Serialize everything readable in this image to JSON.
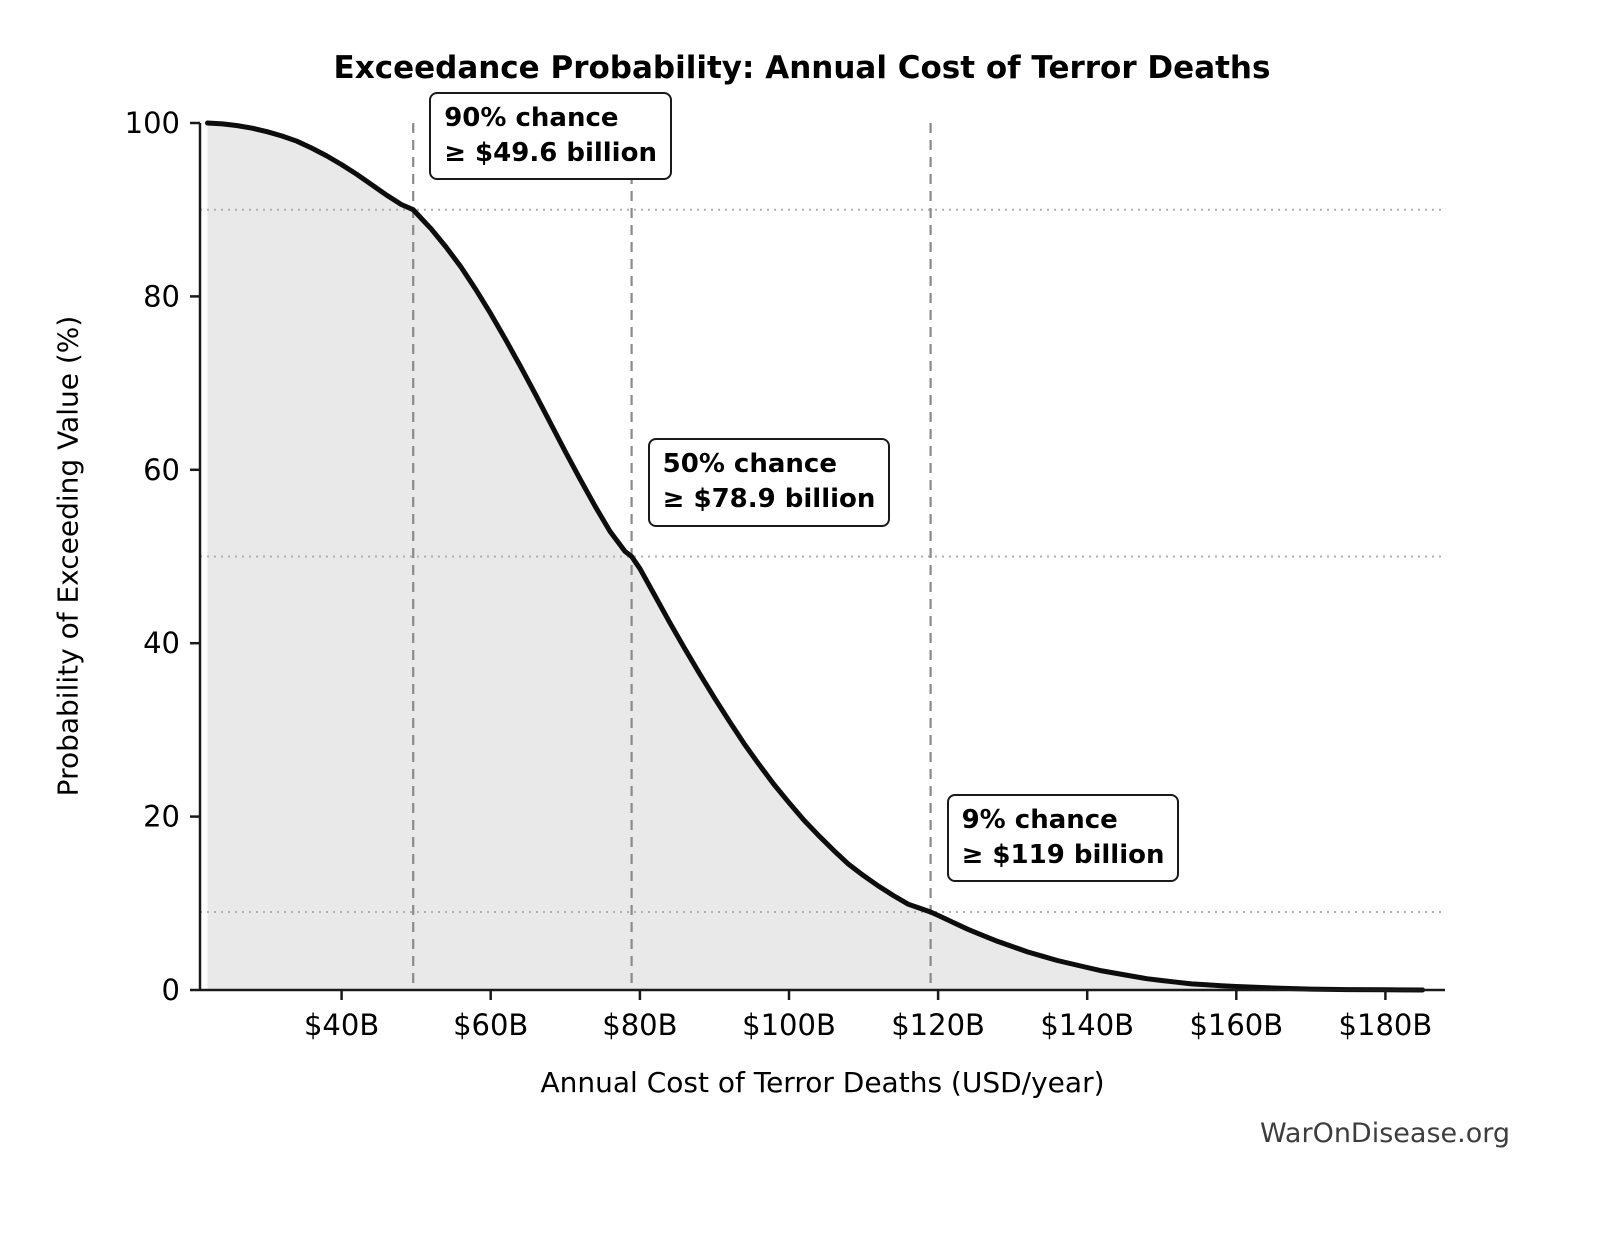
{
  "title": "Exceedance Probability: Annual Cost of Terror Deaths",
  "xlabel": "Annual Cost of Terror Deaths (USD/year)",
  "ylabel": "Probability of Exceeding Value (%)",
  "watermark": "WarOnDisease.org",
  "chart_data": {
    "type": "area",
    "title": "Exceedance Probability: Annual Cost of Terror Deaths",
    "xlabel": "Annual Cost of Terror Deaths (USD/year)",
    "ylabel": "Probability of Exceeding Value (%)",
    "xlim": [
      21,
      188
    ],
    "ylim": [
      0,
      100
    ],
    "grid": "reference-lines-only",
    "legend": "none",
    "colors": {
      "curve": "#0d0d0d",
      "fill": "#e9e9e9",
      "dashed_vline": "#8a8a8a",
      "dotted_hline": "#b0b0b0",
      "spine": "#1a1a1a"
    },
    "x_ticks": [
      {
        "value": 40,
        "label": "$40B"
      },
      {
        "value": 60,
        "label": "$60B"
      },
      {
        "value": 80,
        "label": "$80B"
      },
      {
        "value": 100,
        "label": "$100B"
      },
      {
        "value": 120,
        "label": "$120B"
      },
      {
        "value": 140,
        "label": "$140B"
      },
      {
        "value": 160,
        "label": "$160B"
      },
      {
        "value": 180,
        "label": "$180B"
      }
    ],
    "y_ticks": [
      {
        "value": 0,
        "label": "0"
      },
      {
        "value": 20,
        "label": "20"
      },
      {
        "value": 40,
        "label": "40"
      },
      {
        "value": 60,
        "label": "60"
      },
      {
        "value": 80,
        "label": "80"
      },
      {
        "value": 100,
        "label": "100"
      }
    ],
    "annotations": [
      {
        "x": 49.6,
        "y": 90,
        "line1": "90% chance",
        "line2": "≥ $49.6 billion"
      },
      {
        "x": 78.9,
        "y": 50,
        "line1": "50% chance",
        "line2": "≥ $78.9 billion"
      },
      {
        "x": 119,
        "y": 9,
        "line1": "9% chance",
        "line2": "≥ $119 billion"
      }
    ],
    "curve": [
      [
        22,
        100
      ],
      [
        24,
        99.9
      ],
      [
        26,
        99.7
      ],
      [
        28,
        99.4
      ],
      [
        30,
        99.0
      ],
      [
        32,
        98.5
      ],
      [
        34,
        97.9
      ],
      [
        36,
        97.1
      ],
      [
        38,
        96.2
      ],
      [
        40,
        95.2
      ],
      [
        42,
        94.1
      ],
      [
        44,
        92.9
      ],
      [
        46,
        91.7
      ],
      [
        48,
        90.6
      ],
      [
        49.6,
        90.0
      ],
      [
        51,
        88.7
      ],
      [
        52,
        87.8
      ],
      [
        54,
        85.7
      ],
      [
        56,
        83.4
      ],
      [
        58,
        80.8
      ],
      [
        60,
        78.0
      ],
      [
        62,
        75.0
      ],
      [
        64,
        71.9
      ],
      [
        66,
        68.7
      ],
      [
        68,
        65.4
      ],
      [
        70,
        62.1
      ],
      [
        72,
        58.9
      ],
      [
        74,
        55.8
      ],
      [
        76,
        52.9
      ],
      [
        78,
        50.6
      ],
      [
        78.9,
        50.0
      ],
      [
        80,
        48.6
      ],
      [
        82,
        45.5
      ],
      [
        84,
        42.4
      ],
      [
        86,
        39.4
      ],
      [
        88,
        36.5
      ],
      [
        90,
        33.7
      ],
      [
        92,
        31.0
      ],
      [
        94,
        28.4
      ],
      [
        96,
        26.0
      ],
      [
        98,
        23.7
      ],
      [
        100,
        21.6
      ],
      [
        102,
        19.6
      ],
      [
        104,
        17.8
      ],
      [
        106,
        16.1
      ],
      [
        108,
        14.5
      ],
      [
        110,
        13.2
      ],
      [
        112,
        12.0
      ],
      [
        114,
        10.9
      ],
      [
        116,
        9.9
      ],
      [
        118,
        9.3
      ],
      [
        119,
        9.0
      ],
      [
        120,
        8.6
      ],
      [
        122,
        7.8
      ],
      [
        124,
        7.0
      ],
      [
        126,
        6.3
      ],
      [
        128,
        5.6
      ],
      [
        130,
        5.0
      ],
      [
        132,
        4.4
      ],
      [
        134,
        3.9
      ],
      [
        136,
        3.4
      ],
      [
        138,
        3.0
      ],
      [
        140,
        2.6
      ],
      [
        142,
        2.2
      ],
      [
        144,
        1.9
      ],
      [
        146,
        1.6
      ],
      [
        148,
        1.3
      ],
      [
        150,
        1.1
      ],
      [
        152,
        0.9
      ],
      [
        154,
        0.7
      ],
      [
        156,
        0.6
      ],
      [
        158,
        0.5
      ],
      [
        160,
        0.4
      ],
      [
        163,
        0.3
      ],
      [
        166,
        0.2
      ],
      [
        170,
        0.1
      ],
      [
        175,
        0.05
      ],
      [
        180,
        0.02
      ],
      [
        185,
        0
      ]
    ]
  }
}
